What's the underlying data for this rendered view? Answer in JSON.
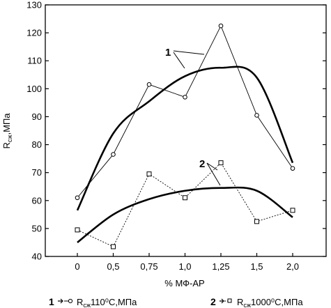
{
  "chart_data": {
    "type": "line",
    "ylabel": "Rсж,МПа",
    "xlabel": "% МФ-АР",
    "ylim": [
      40,
      130
    ],
    "yticks": [
      "40",
      "50",
      "60",
      "70",
      "80",
      "90",
      "100",
      "110",
      "120",
      "130"
    ],
    "x": [
      0,
      0.5,
      0.75,
      1.0,
      1.25,
      1.5,
      2.0
    ],
    "xticks": [
      "0",
      "0,5",
      "0,75",
      "1,0",
      "1,25",
      "1,5",
      "2,0"
    ],
    "series": [
      {
        "name": "Rсж110⁰С,МПа",
        "marker": "circle",
        "values": [
          61,
          76.5,
          101.5,
          97,
          122.5,
          90.5,
          71.5
        ],
        "fit": [
          56.5,
          84,
          95.5,
          104.5,
          107.5,
          104,
          73.5
        ]
      },
      {
        "name": "Rсж1000⁰С,МПа",
        "marker": "square",
        "values": [
          49.5,
          43.5,
          69.5,
          61,
          73.5,
          52.5,
          56.5
        ],
        "fit": [
          45,
          55,
          60.5,
          63.5,
          64.5,
          63.5,
          54
        ]
      }
    ],
    "annotations": [
      "1",
      "2"
    ],
    "grid": false
  },
  "legend": {
    "item1": {
      "num": "1",
      "base": "R",
      "sub": "сж",
      "rest": "110⁰С,МПа"
    },
    "item2": {
      "num": "2",
      "base": "R",
      "sub": "сж",
      "rest": "1000⁰С,МПа"
    }
  }
}
